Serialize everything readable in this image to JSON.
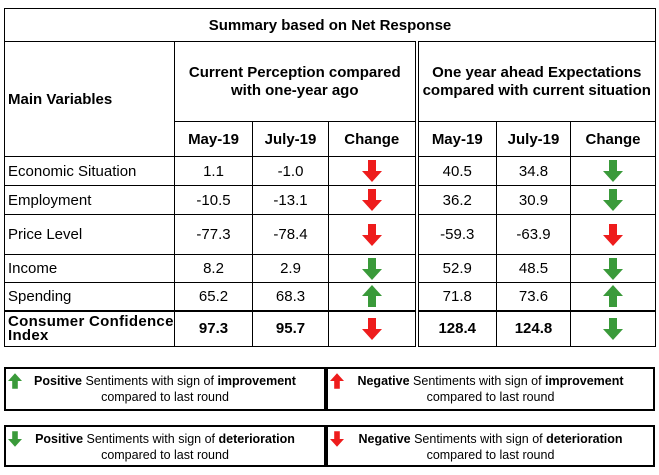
{
  "title": "Summary based on Net Response",
  "col_headers": {
    "main_variables": "Main Variables",
    "current_group": "Current Perception compared with one-year ago",
    "expect_group": "One year ahead Expectations compared with current situation",
    "may": "May-19",
    "july": "July-19",
    "change": "Change"
  },
  "rows": [
    {
      "label": "Economic Situation",
      "cur_may": "1.1",
      "cur_jul": "-1.0",
      "cur_change": "down-red",
      "exp_may": "40.5",
      "exp_jul": "34.8",
      "exp_change": "down-green"
    },
    {
      "label": "Employment",
      "cur_may": "-10.5",
      "cur_jul": "-13.1",
      "cur_change": "down-red",
      "exp_may": "36.2",
      "exp_jul": "30.9",
      "exp_change": "down-green"
    },
    {
      "label": "Price Level",
      "cur_may": "-77.3",
      "cur_jul": "-78.4",
      "cur_change": "down-red",
      "exp_may": "-59.3",
      "exp_jul": "-63.9",
      "exp_change": "down-red"
    },
    {
      "label": "Income",
      "cur_may": "8.2",
      "cur_jul": "2.9",
      "cur_change": "down-green",
      "exp_may": "52.9",
      "exp_jul": "48.5",
      "exp_change": "down-green"
    },
    {
      "label": "Spending",
      "cur_may": "65.2",
      "cur_jul": "68.3",
      "cur_change": "up-green",
      "exp_may": "71.8",
      "exp_jul": "73.6",
      "exp_change": "up-green"
    }
  ],
  "cci": {
    "label": "Consumer Confidence Index",
    "cur_may": "97.3",
    "cur_jul": "95.7",
    "cur_change": "down-red",
    "exp_may": "128.4",
    "exp_jul": "124.8",
    "exp_change": "down-green"
  },
  "legend": {
    "pos_imp": {
      "b1": "Positive",
      "t1": " Sentiments with sign of ",
      "b2": "improvement",
      "t2": "compared to last round",
      "icon": "up-green"
    },
    "neg_imp": {
      "b1": "Negative",
      "t1": " Sentiments with sign of ",
      "b2": "improvement",
      "t2": "compared to last round",
      "icon": "up-red"
    },
    "pos_det": {
      "b1": "Positive",
      "t1": " Sentiments with sign of ",
      "b2": "deterioration",
      "t2": "compared to last round",
      "icon": "down-green"
    },
    "neg_det": {
      "b1": "Negative",
      "t1": " Sentiments with sign of ",
      "b2": "deterioration",
      "t2": "compared to last round",
      "icon": "down-red"
    }
  },
  "colors": {
    "green": "#3a9a3a",
    "red": "#ee1c1c"
  }
}
